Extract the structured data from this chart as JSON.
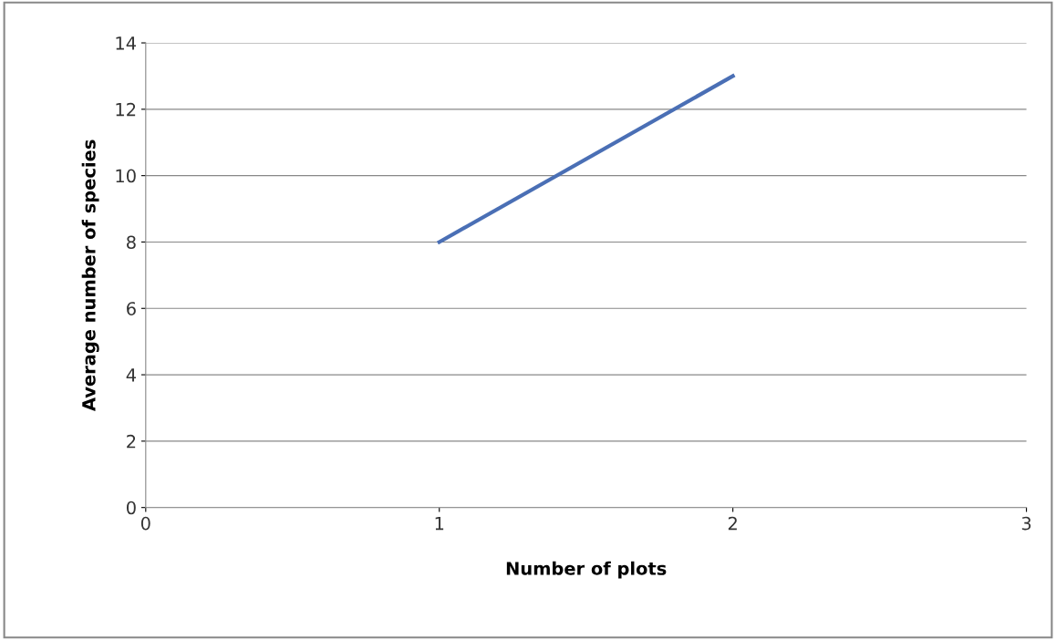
{
  "chart_data": {
    "type": "line",
    "xlabel": "Number of plots",
    "ylabel": "Average number of species",
    "x": [
      1,
      2
    ],
    "series": [
      {
        "color": "#4a6fb5",
        "values": [
          8,
          13
        ]
      }
    ],
    "xlim": [
      0,
      3
    ],
    "xticks": [
      0,
      1,
      2,
      3
    ],
    "ylim": [
      0,
      14
    ],
    "yticks": [
      0,
      2,
      4,
      6,
      8,
      10,
      12,
      14
    ],
    "grid": "y",
    "marker": "none",
    "line_style": "solid"
  }
}
